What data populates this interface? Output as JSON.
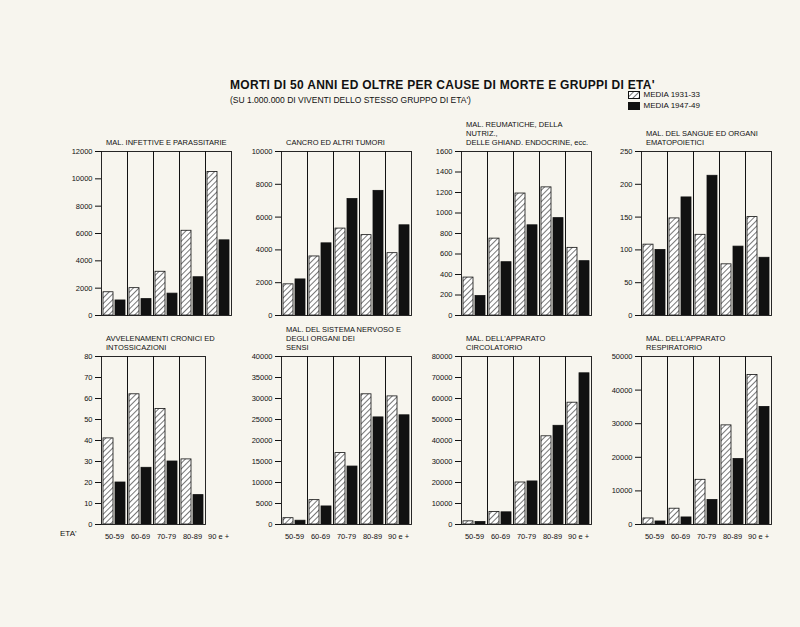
{
  "title": "MORTI DI 50 ANNI ED OLTRE PER CAUSE DI MORTE E GRUPPI DI ETA'",
  "subtitle": "(SU 1.000.000 DI VIVENTI DELLO STESSO GRUPPO DI ETA')",
  "legend": "top-right",
  "chart_data": [
    {
      "type": "bar",
      "title": "MAL. INFETTIVE E PARASSITARIE",
      "tick_labels": "y",
      "categories": [
        "50-59",
        "60-69",
        "70-79",
        "80-89",
        "90 e +"
      ],
      "series": [
        {
          "name": "MEDIA 1931-33",
          "color": "#555555",
          "marker": "hatch",
          "values": [
            1700,
            2000,
            3200,
            6200,
            10500
          ]
        },
        {
          "name": "MEDIA 1947-49",
          "color": "#111111",
          "marker": "solid",
          "values": [
            1100,
            1200,
            1600,
            2800,
            5500
          ]
        }
      ],
      "ylim": [
        0,
        12000
      ],
      "yticks": [
        0,
        2000,
        4000,
        6000,
        8000,
        10000,
        12000
      ]
    },
    {
      "type": "bar",
      "title": "CANCRO ED ALTRI TUMORI",
      "tick_labels": "y",
      "categories": [
        "50-59",
        "60-69",
        "70-79",
        "80-89",
        "90 e +"
      ],
      "series": [
        {
          "name": "MEDIA 1931-33",
          "color": "#555555",
          "marker": "hatch",
          "values": [
            1900,
            3600,
            5300,
            4900,
            3800
          ]
        },
        {
          "name": "MEDIA 1947-49",
          "color": "#111111",
          "marker": "solid",
          "values": [
            2200,
            4400,
            7100,
            7600,
            5500
          ]
        }
      ],
      "ylim": [
        0,
        10000
      ],
      "yticks": [
        0,
        2000,
        4000,
        6000,
        8000,
        10000
      ]
    },
    {
      "type": "bar",
      "title": "MAL. REUMATICHE, DELLA NUTRIZ.,\nDELLE GHIAND. ENDOCRINE, ecc.",
      "tick_labels": "y",
      "categories": [
        "50-59",
        "60-69",
        "70-79",
        "80-89",
        "90 e +"
      ],
      "series": [
        {
          "name": "MEDIA 1931-33",
          "color": "#555555",
          "marker": "hatch",
          "values": [
            370,
            750,
            1190,
            1250,
            660
          ]
        },
        {
          "name": "MEDIA 1947-49",
          "color": "#111111",
          "marker": "solid",
          "values": [
            190,
            520,
            880,
            950,
            530
          ]
        }
      ],
      "ylim": [
        0,
        1600
      ],
      "yticks": [
        0,
        200,
        400,
        600,
        800,
        1000,
        1200,
        1400,
        1600
      ]
    },
    {
      "type": "bar",
      "title": "MAL. DEL SANGUE ED ORGANI\nEMATOPOIETICI",
      "tick_labels": "y",
      "categories": [
        "50-59",
        "60-69",
        "70-79",
        "80-89",
        "90 e +"
      ],
      "series": [
        {
          "name": "MEDIA 1931-33",
          "color": "#555555",
          "marker": "hatch",
          "values": [
            108,
            148,
            123,
            78,
            150
          ]
        },
        {
          "name": "MEDIA 1947-49",
          "color": "#111111",
          "marker": "solid",
          "values": [
            100,
            180,
            213,
            105,
            88
          ]
        }
      ],
      "ylim": [
        0,
        250
      ],
      "yticks": [
        0,
        50,
        100,
        150,
        200,
        250
      ]
    },
    {
      "type": "bar",
      "title": "AVVELENAMENTI CRONICI ED\nINTOSSICAZIONI",
      "xlabel": "ETA'",
      "categories": [
        "50-59",
        "60-69",
        "70-79",
        "80-89",
        "90 e +"
      ],
      "series": [
        {
          "name": "MEDIA 1931-33",
          "color": "#555555",
          "marker": "hatch",
          "values": [
            41,
            62,
            55,
            31,
            null
          ]
        },
        {
          "name": "MEDIA 1947-49",
          "color": "#111111",
          "marker": "solid",
          "values": [
            20,
            27,
            30,
            14,
            null
          ]
        }
      ],
      "ylim": [
        0,
        80
      ],
      "yticks": [
        0,
        10,
        20,
        30,
        40,
        50,
        60,
        70,
        80
      ]
    },
    {
      "type": "bar",
      "title": "MAL. DEL SISTEMA NERVOSO E\nDEGLI ORGANI DEI\nSENSI",
      "categories": [
        "50-59",
        "60-69",
        "70-79",
        "80-89",
        "90 e +"
      ],
      "series": [
        {
          "name": "MEDIA 1931-33",
          "color": "#555555",
          "marker": "hatch",
          "values": [
            1500,
            5800,
            17000,
            31000,
            30500
          ]
        },
        {
          "name": "MEDIA 1947-49",
          "color": "#111111",
          "marker": "solid",
          "values": [
            900,
            4300,
            13800,
            25500,
            26000
          ]
        }
      ],
      "ylim": [
        0,
        40000
      ],
      "yticks": [
        0,
        5000,
        10000,
        15000,
        20000,
        25000,
        30000,
        35000,
        40000
      ]
    },
    {
      "type": "bar",
      "title": "MAL. DELL'APPARATO\nCIRCOLATORIO",
      "categories": [
        "50-59",
        "60-69",
        "70-79",
        "80-89",
        "90 e +"
      ],
      "series": [
        {
          "name": "MEDIA 1931-33",
          "color": "#555555",
          "marker": "hatch",
          "values": [
            1500,
            6000,
            20000,
            42000,
            58000
          ]
        },
        {
          "name": "MEDIA 1947-49",
          "color": "#111111",
          "marker": "solid",
          "values": [
            1200,
            5800,
            20500,
            47000,
            72000
          ]
        }
      ],
      "ylim": [
        0,
        80000
      ],
      "yticks": [
        0,
        10000,
        20000,
        30000,
        40000,
        50000,
        60000,
        70000,
        80000
      ]
    },
    {
      "type": "bar",
      "title": "MAL. DELL'APPARATO\nRESPIRATORIO",
      "categories": [
        "50-59",
        "60-69",
        "70-79",
        "80-89",
        "90 e +"
      ],
      "series": [
        {
          "name": "MEDIA 1931-33",
          "color": "#555555",
          "marker": "hatch",
          "values": [
            1800,
            4700,
            13300,
            29500,
            44500
          ]
        },
        {
          "name": "MEDIA 1947-49",
          "color": "#111111",
          "marker": "solid",
          "values": [
            900,
            2100,
            7300,
            19500,
            35000
          ]
        }
      ],
      "ylim": [
        0,
        50000
      ],
      "yticks": [
        0,
        10000,
        20000,
        30000,
        40000,
        50000
      ]
    }
  ]
}
